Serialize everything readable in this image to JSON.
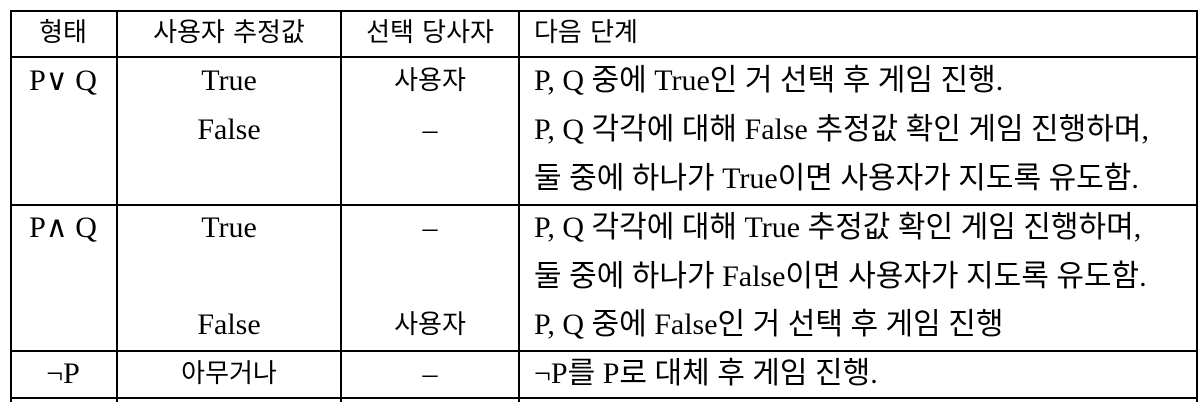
{
  "headers": {
    "form": "형태",
    "user_guess": "사용자 추정값",
    "chooser": "선택 당사자",
    "next_step": "다음 단계"
  },
  "rows": [
    {
      "form": "P∨ Q",
      "cases": [
        {
          "guess": "True",
          "chooser": "사용자",
          "steps": [
            "P, Q 중에 True인 거 선택 후 게임 진행."
          ]
        },
        {
          "guess": "False",
          "chooser": "–",
          "steps": [
            "P, Q 각각에 대해 False 추정값 확인 게임 진행하며,",
            "둘 중에 하나가 True이면 사용자가 지도록 유도함."
          ]
        }
      ]
    },
    {
      "form": "P∧ Q",
      "cases": [
        {
          "guess": "True",
          "chooser": "–",
          "steps": [
            "P, Q 각각에 대해 True 추정값 확인 게임 진행하며,",
            "둘 중에 하나가 False이면 사용자가 지도록 유도함."
          ]
        },
        {
          "guess": "False",
          "chooser": "사용자",
          "steps": [
            "P, Q 중에 False인 거 선택 후 게임 진행"
          ]
        }
      ]
    },
    {
      "form": "¬P",
      "cases": [
        {
          "guess": "아무거나",
          "chooser": "–",
          "steps": [
            "¬P를 P로 대체 후 게임 진행."
          ]
        }
      ]
    }
  ]
}
